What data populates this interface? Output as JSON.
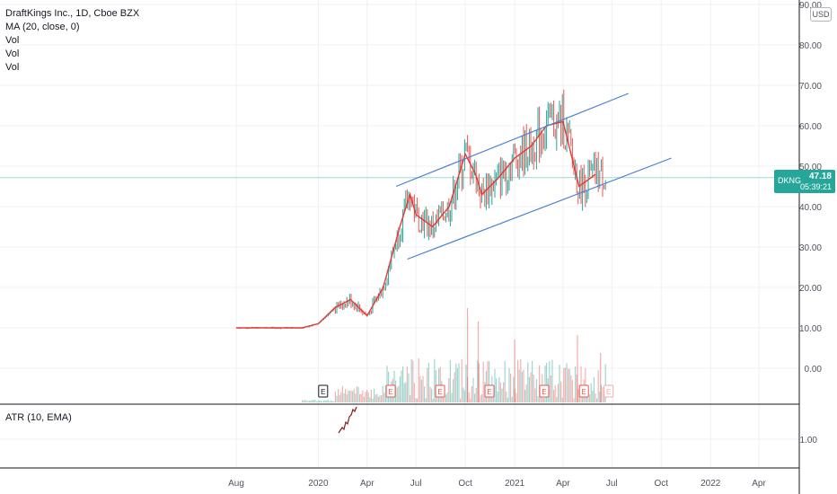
{
  "legend": {
    "title": "DraftKings Inc., 1D, Cboe BZX",
    "ma": "MA (20, close, 0)",
    "vol": [
      "Vol",
      "Vol",
      "Vol"
    ]
  },
  "atr_label": "ATR (10, EMA)",
  "currency": "USD",
  "price_tag": {
    "symbol": "DKNG",
    "price": "47.18",
    "countdown": "05:39:21"
  },
  "colors": {
    "up": "#26a69a",
    "down": "#ef5350",
    "ma": "#e53935",
    "channel": "#4a7fd4",
    "grid": "#eef0f3"
  },
  "chart_data": {
    "type": "line",
    "title": "DraftKings Inc., 1D, Cboe BZX",
    "x_ticks": [
      "Aug",
      "2020",
      "Apr",
      "Jul",
      "Oct",
      "2021",
      "Apr",
      "Jul",
      "Oct",
      "2022",
      "Apr"
    ],
    "y_ticks": [
      "90.00",
      "80.00",
      "70.00",
      "60.00",
      "50.00",
      "40.00",
      "30.00",
      "20.00",
      "10.00",
      "0.00"
    ],
    "atr_ticks": [
      "1.00"
    ],
    "ylim": [
      -9,
      91
    ],
    "series": [
      {
        "name": "MA (20, close, 0)",
        "points": [
          [
            "2019-08",
            10
          ],
          [
            "2019-10",
            10
          ],
          [
            "2019-12",
            10
          ],
          [
            "2020-01",
            11
          ],
          [
            "2020-02",
            15
          ],
          [
            "2020-03",
            17
          ],
          [
            "2020-04",
            13
          ],
          [
            "2020-05",
            20
          ],
          [
            "2020-06",
            35
          ],
          [
            "2020-06-20",
            43
          ],
          [
            "2020-07",
            38
          ],
          [
            "2020-08",
            35
          ],
          [
            "2020-09",
            40
          ],
          [
            "2020-10",
            53
          ],
          [
            "2020-10-20",
            48
          ],
          [
            "2020-11",
            43
          ],
          [
            "2020-12",
            47
          ],
          [
            "2021-01",
            52
          ],
          [
            "2021-02",
            55
          ],
          [
            "2021-03",
            60
          ],
          [
            "2021-04",
            61
          ],
          [
            "2021-05",
            45
          ],
          [
            "2021-06",
            48
          ]
        ]
      },
      {
        "name": "Channel upper",
        "points": [
          [
            "2020-05-25",
            45
          ],
          [
            "2021-08-01",
            68
          ]
        ]
      },
      {
        "name": "Channel lower",
        "points": [
          [
            "2020-06-15",
            27
          ],
          [
            "2021-10-20",
            52
          ]
        ]
      }
    ],
    "markers": {
      "earnings": "E"
    },
    "last_price": 47.18,
    "horizontal_line": 47.18
  }
}
